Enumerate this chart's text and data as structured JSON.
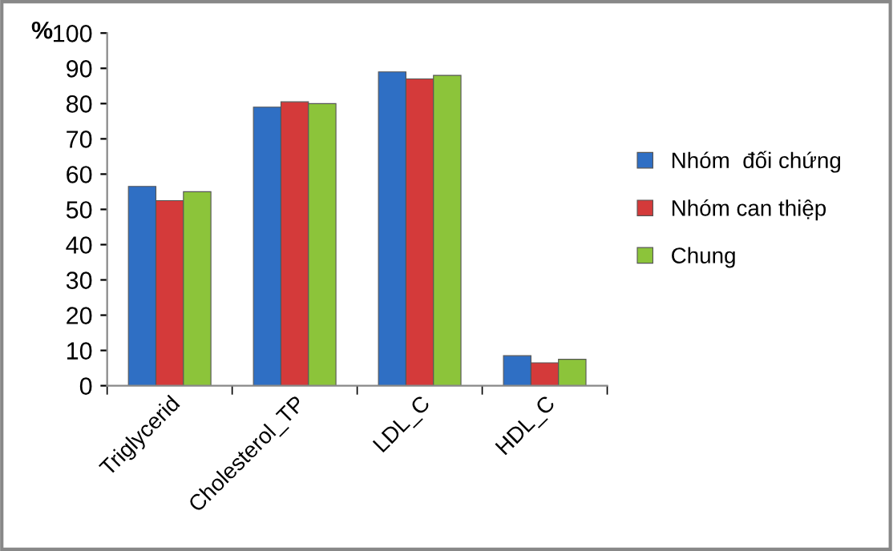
{
  "chart_data": {
    "type": "bar",
    "ylabel": "%",
    "categories": [
      "Triglycerid",
      "Cholesterol_TP",
      "LDL_C",
      "HDL_C"
    ],
    "series": [
      {
        "name": "Nhóm  đối chứng",
        "color": "#2f6fc4",
        "values": [
          56.5,
          79,
          89,
          8.5
        ]
      },
      {
        "name": "Nhóm can thiệp",
        "color": "#d43a3a",
        "values": [
          52.5,
          80.5,
          87,
          6.5
        ]
      },
      {
        "name": "Chung",
        "color": "#8cc43a",
        "values": [
          55,
          80,
          88,
          7.5
        ]
      }
    ],
    "ylim": [
      0,
      100
    ],
    "yticks": [
      0,
      10,
      20,
      30,
      40,
      50,
      60,
      70,
      80,
      90,
      100
    ],
    "grid": false,
    "legend": "right"
  }
}
